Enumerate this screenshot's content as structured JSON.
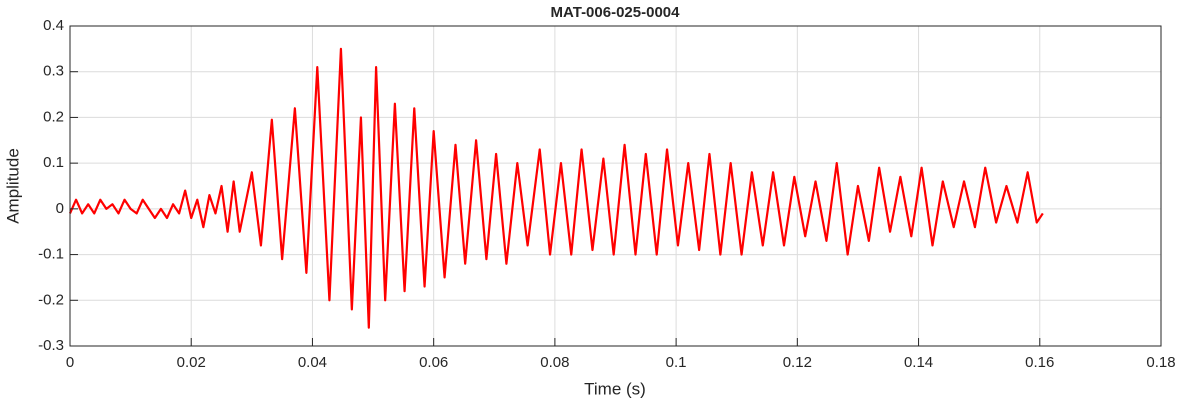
{
  "chart_data": {
    "type": "line",
    "title": "MAT-006-025-0004",
    "xlabel": "Time (s)",
    "ylabel": "Amplitude",
    "color": "#ff0000",
    "grid": true,
    "xlim": [
      0,
      0.18
    ],
    "xticks": [
      0,
      0.02,
      0.04,
      0.06,
      0.08,
      0.1,
      0.12,
      0.14,
      0.16,
      0.18
    ],
    "ylim": [
      -0.3,
      0.4
    ],
    "yticks": [
      -0.3,
      -0.2,
      -0.1,
      0,
      0.1,
      0.2,
      0.3,
      0.4
    ],
    "x": [
      0,
      0.001,
      0.002,
      0.003,
      0.004,
      0.005,
      0.006,
      0.007,
      0.008,
      0.009,
      0.01,
      0.011,
      0.012,
      0.013,
      0.014,
      0.015,
      0.016,
      0.017,
      0.018,
      0.019,
      0.02,
      0.021,
      0.022,
      0.023,
      0.024,
      0.025,
      0.026,
      0.027,
      0.028,
      0.03,
      0.0315,
      0.0333,
      0.035,
      0.0371,
      0.039,
      0.0408,
      0.0428,
      0.0447,
      0.0465,
      0.048,
      0.0493,
      0.0505,
      0.052,
      0.0536,
      0.0552,
      0.0568,
      0.0585,
      0.06,
      0.0618,
      0.0636,
      0.0652,
      0.067,
      0.0687,
      0.0703,
      0.072,
      0.0738,
      0.0755,
      0.0775,
      0.0792,
      0.081,
      0.0827,
      0.0844,
      0.0862,
      0.088,
      0.0897,
      0.0915,
      0.0933,
      0.095,
      0.0968,
      0.0985,
      0.1003,
      0.102,
      0.1038,
      0.1055,
      0.1073,
      0.109,
      0.1108,
      0.1125,
      0.1143,
      0.116,
      0.1178,
      0.1195,
      0.1213,
      0.123,
      0.1248,
      0.1265,
      0.1283,
      0.13,
      0.1318,
      0.1335,
      0.1353,
      0.137,
      0.1388,
      0.1405,
      0.1423,
      0.144,
      0.1458,
      0.1475,
      0.1493,
      0.151,
      0.1528,
      0.1545,
      0.1563,
      0.158,
      0.1595,
      0.1605
    ],
    "values": [
      -0.01,
      0.02,
      -0.01,
      0.01,
      -0.01,
      0.02,
      0,
      0.01,
      -0.01,
      0.02,
      0,
      -0.01,
      0.02,
      0,
      -0.02,
      0,
      -0.02,
      0.01,
      -0.01,
      0.04,
      -0.02,
      0.02,
      -0.04,
      0.03,
      -0.01,
      0.05,
      -0.05,
      0.06,
      -0.05,
      0.08,
      -0.08,
      0.195,
      -0.11,
      0.22,
      -0.14,
      0.31,
      -0.2,
      0.35,
      -0.22,
      0.2,
      -0.26,
      0.31,
      -0.2,
      0.23,
      -0.18,
      0.22,
      -0.17,
      0.17,
      -0.15,
      0.14,
      -0.12,
      0.15,
      -0.11,
      0.12,
      -0.12,
      0.1,
      -0.08,
      0.13,
      -0.1,
      0.1,
      -0.1,
      0.13,
      -0.09,
      0.11,
      -0.1,
      0.14,
      -0.1,
      0.12,
      -0.1,
      0.13,
      -0.08,
      0.1,
      -0.09,
      0.12,
      -0.1,
      0.1,
      -0.1,
      0.08,
      -0.08,
      0.08,
      -0.08,
      0.07,
      -0.06,
      0.06,
      -0.07,
      0.1,
      -0.1,
      0.05,
      -0.07,
      0.09,
      -0.05,
      0.07,
      -0.06,
      0.09,
      -0.08,
      0.06,
      -0.04,
      0.06,
      -0.04,
      0.09,
      -0.03,
      0.05,
      -0.03,
      0.08,
      -0.03,
      -0.01
    ]
  }
}
